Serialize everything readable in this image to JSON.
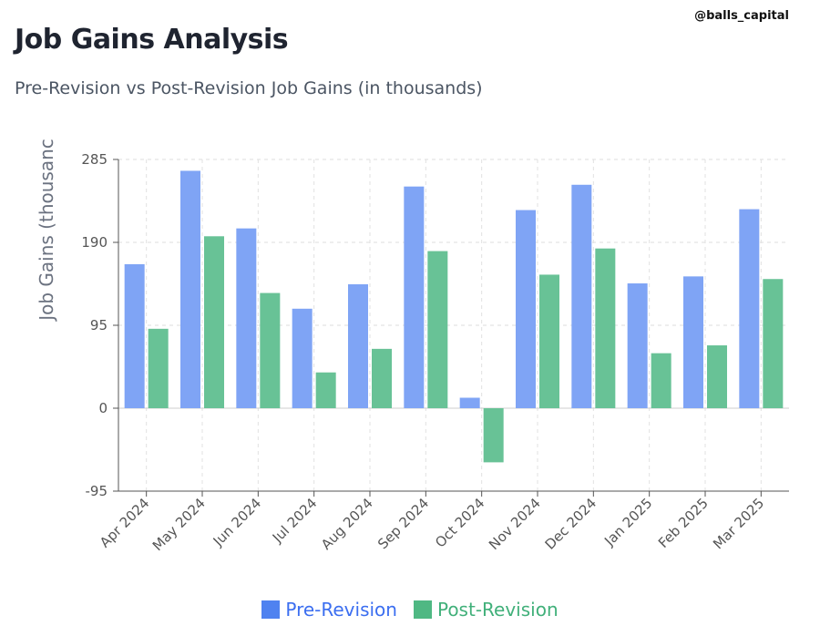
{
  "watermark": "@balls_capital",
  "chart_data": {
    "type": "bar",
    "title": "Job Gains Analysis",
    "subtitle": "Pre-Revision vs Post-Revision Job Gains (in thousands)",
    "xlabel": "",
    "ylabel": "Job Gains (thousanc",
    "categories": [
      "Apr 2024",
      "May 2024",
      "Jun 2024",
      "Jul 2024",
      "Aug 2024",
      "Sep 2024",
      "Oct 2024",
      "Nov 2024",
      "Dec 2024",
      "Jan 2025",
      "Feb 2025",
      "Mar 2025"
    ],
    "series": [
      {
        "name": "Pre-Revision",
        "color": "#7fa4f5",
        "values": [
          165,
          272,
          206,
          114,
          142,
          254,
          12,
          227,
          256,
          143,
          151,
          228
        ]
      },
      {
        "name": "Post-Revision",
        "color": "#68c296",
        "values": [
          91,
          197,
          132,
          41,
          68,
          180,
          -62,
          153,
          183,
          63,
          72,
          148
        ]
      }
    ],
    "ylim": [
      -95,
      285
    ],
    "yticks": [
      "285",
      "190",
      "95",
      "0",
      "-95"
    ],
    "ytick_values": [
      285,
      190,
      95,
      0,
      -95
    ],
    "grid": true,
    "legend_position": "bottom"
  },
  "legend_colors": {
    "pre_text": "#3b6ef0",
    "post_text": "#41b07a",
    "pre_swatch": "#4f82f0",
    "post_swatch": "#4fb883"
  }
}
